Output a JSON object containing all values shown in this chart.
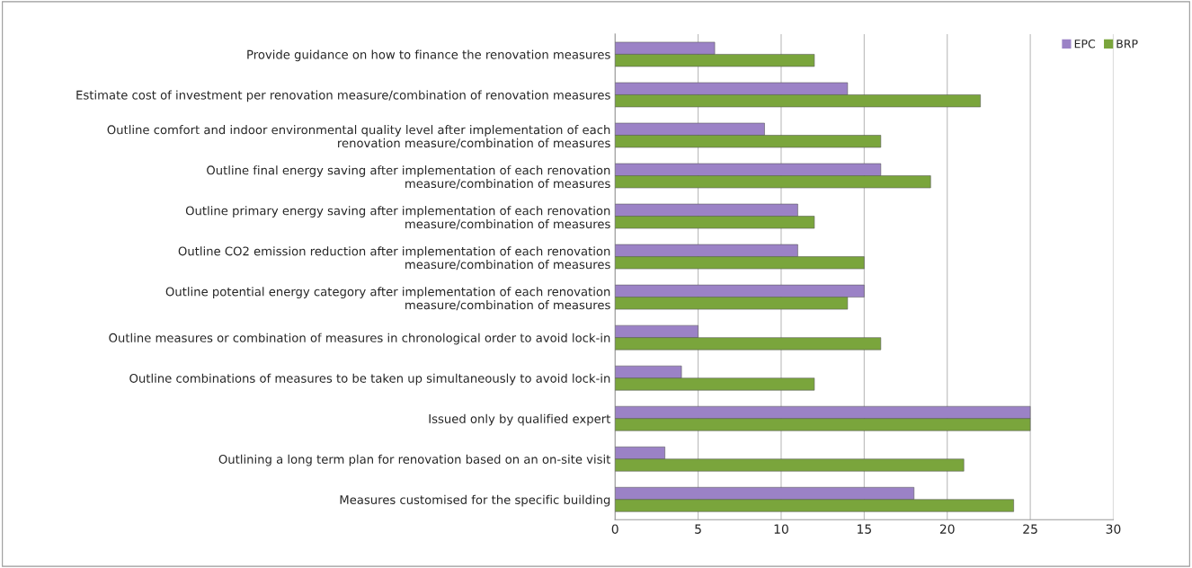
{
  "chart_data": {
    "type": "bar",
    "orientation": "horizontal",
    "categories": [
      "Provide guidance on how to finance the renovation measures",
      "Estimate cost of investment per renovation measure/combination of renovation measures",
      "Outline comfort and indoor environmental quality level after implementation of each renovation measure/combination of measures",
      "Outline final energy saving after implementation of each renovation measure/combination of measures",
      "Outline primary energy saving after implementation of each renovation measure/combination of measures",
      "Outline CO2 emission reduction after implementation of each renovation measure/combination of measures",
      "Outline potential energy category after implementation of each renovation measure/combination of measures",
      "Outline measures or combination of measures in chronological order to avoid lock-in",
      "Outline combinations of measures to be taken up simultaneously to avoid lock-in",
      "Issued only by qualified expert",
      "Outlining a long term plan for renovation based on an on-site visit",
      "Measures customised for the specific building"
    ],
    "series": [
      {
        "name": "EPC",
        "color": "#9b82c6",
        "values": [
          6,
          14,
          9,
          16,
          11,
          11,
          15,
          5,
          4,
          25,
          3,
          18
        ]
      },
      {
        "name": "BRP",
        "color": "#7aa53c",
        "values": [
          12,
          22,
          16,
          19,
          12,
          15,
          14,
          16,
          12,
          25,
          21,
          24
        ]
      }
    ],
    "xlim": [
      0,
      30
    ],
    "xticks": [
      0,
      5,
      10,
      15,
      20,
      25,
      30
    ],
    "grid": "x",
    "legend": "top right"
  }
}
